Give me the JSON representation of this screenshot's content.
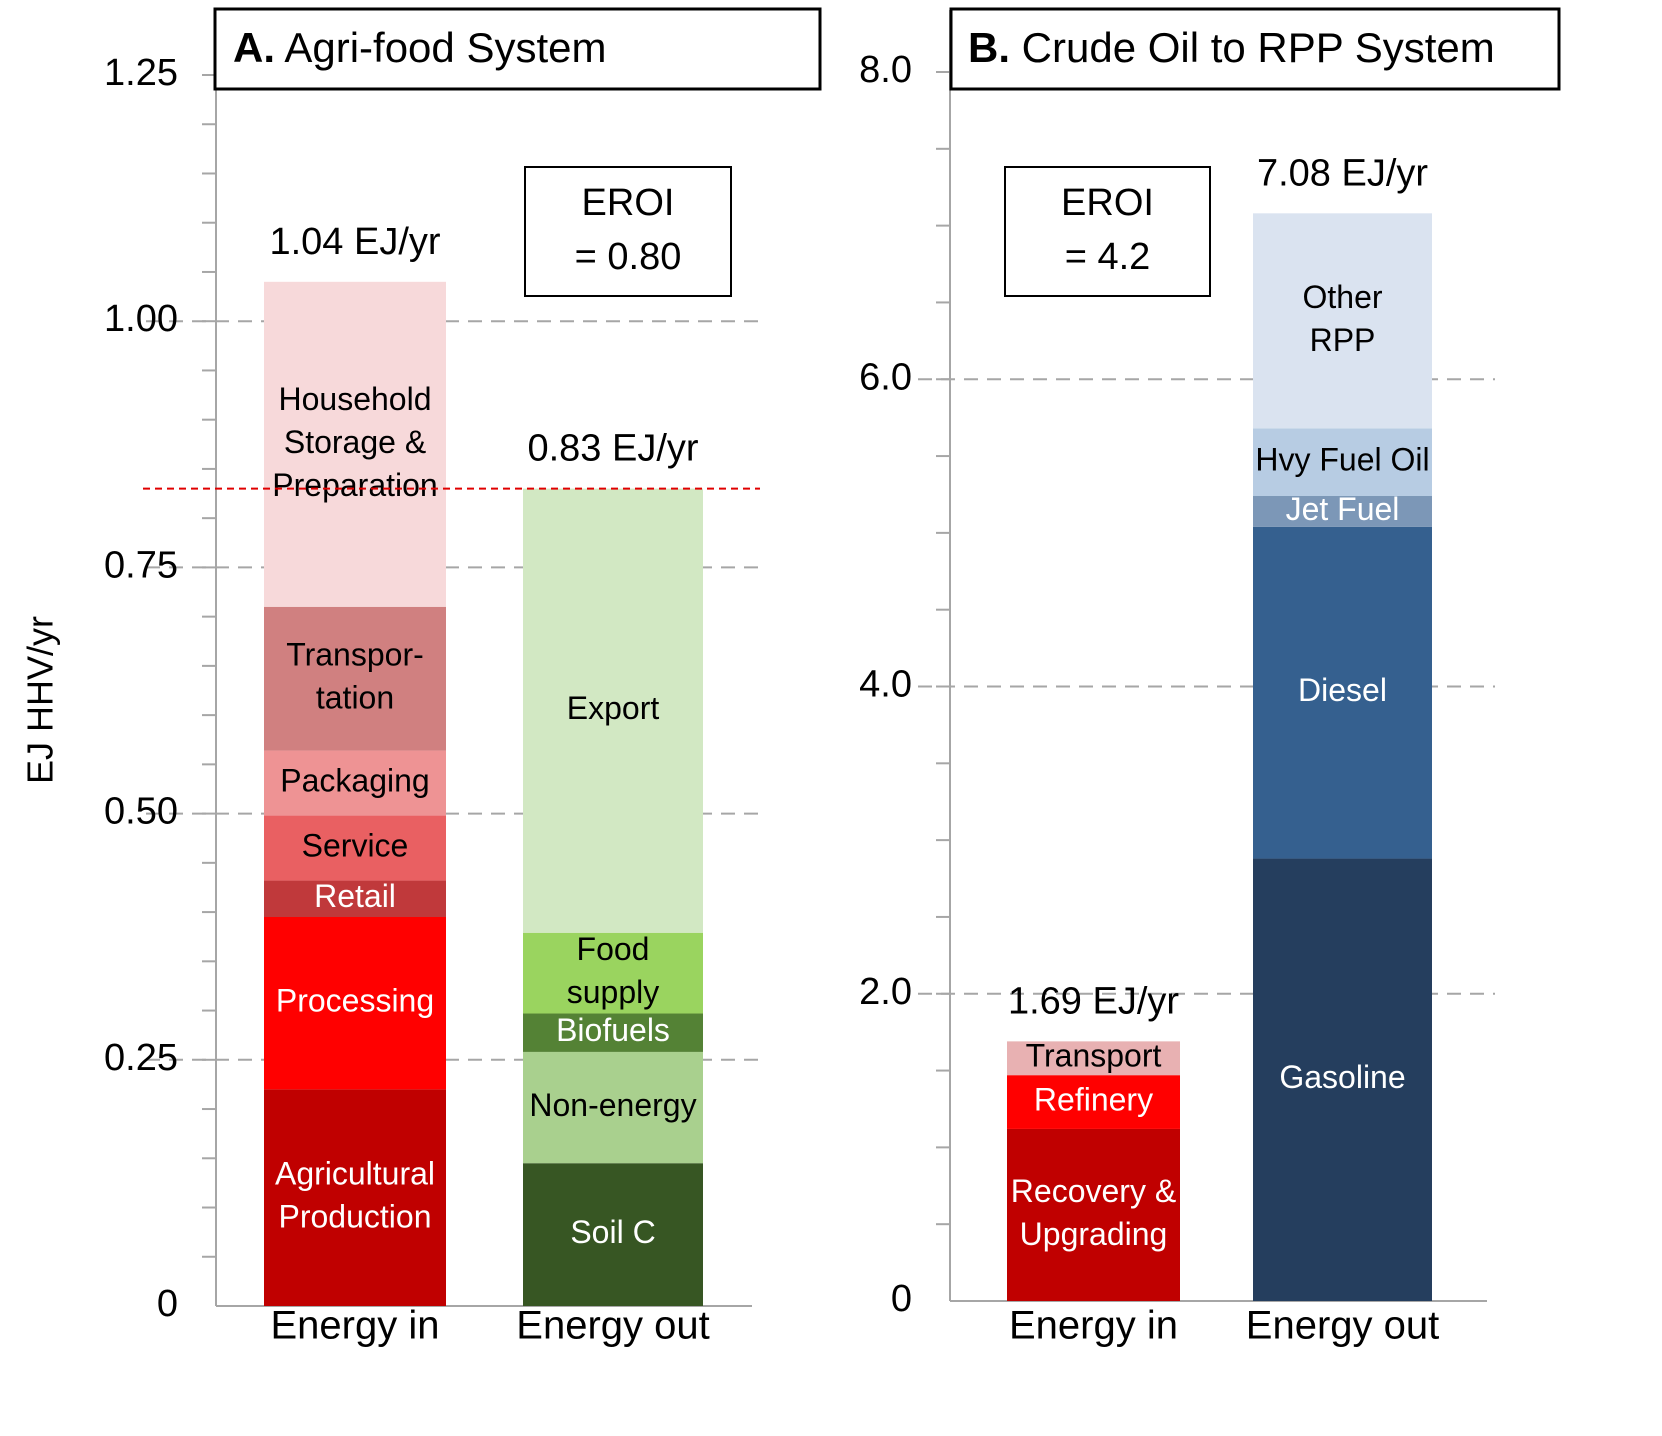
{
  "chart_data": [
    {
      "type": "bar",
      "stacked": true,
      "panel_letter": "A.",
      "title": "Agri-food System",
      "ylabel": "EJ HHV/yr",
      "ylim": [
        0,
        1.25
      ],
      "yticks": [
        "0",
        "0.25",
        "0.50",
        "0.75",
        "1.00",
        "1.25"
      ],
      "grid": "dashed horizontal",
      "categories": [
        "Energy in",
        "Energy out"
      ],
      "eroi_lines": [
        "EROI",
        "= 0.80"
      ],
      "reference_line": {
        "value": 0.83,
        "style": "red dashed"
      },
      "bars": [
        {
          "category": "Energy in",
          "total_label": "1.04 EJ/yr",
          "segments": [
            {
              "label": [
                "Agricultural",
                "Production"
              ],
              "value": 0.22,
              "color": "#c00000",
              "text_color": "#ffffff"
            },
            {
              "label": [
                "Processing"
              ],
              "value": 0.175,
              "color": "#ff0000",
              "text_color": "#ffffff"
            },
            {
              "label": [
                "Retail"
              ],
              "value": 0.037,
              "color": "#c0393b",
              "text_color": "#ffffff"
            },
            {
              "label": [
                "Service"
              ],
              "value": 0.066,
              "color": "#e96062",
              "text_color": "#000000"
            },
            {
              "label": [
                "Packaging"
              ],
              "value": 0.066,
              "color": "#ee9394",
              "text_color": "#000000"
            },
            {
              "label": [
                "Transpor-",
                "tation"
              ],
              "value": 0.146,
              "color": "#d08080",
              "text_color": "#000000"
            },
            {
              "label": [
                "Household",
                "Storage &",
                "Preparation"
              ],
              "value": 0.33,
              "color": "#f7d9da",
              "text_color": "#000000"
            }
          ]
        },
        {
          "category": "Energy out",
          "total_label": "0.83 EJ/yr",
          "segments": [
            {
              "label": [
                "Soil C"
              ],
              "value": 0.145,
              "color": "#375623",
              "text_color": "#ffffff"
            },
            {
              "label": [
                "Non-energy"
              ],
              "value": 0.113,
              "color": "#a9d08e",
              "text_color": "#000000"
            },
            {
              "label": [
                "Biofuels"
              ],
              "value": 0.039,
              "color": "#548235",
              "text_color": "#ffffff"
            },
            {
              "label": [
                "Food",
                "supply"
              ],
              "value": 0.082,
              "color": "#9ad45f",
              "text_color": "#000000"
            },
            {
              "label": [
                "Export"
              ],
              "value": 0.451,
              "color": "#d2e8c3",
              "text_color": "#000000"
            }
          ]
        }
      ]
    },
    {
      "type": "bar",
      "stacked": true,
      "panel_letter": "B.",
      "title": "Crude Oil to RPP System",
      "ylim": [
        0,
        8.0
      ],
      "yticks": [
        "0",
        "2.0",
        "4.0",
        "6.0",
        "8.0"
      ],
      "grid": "dashed horizontal",
      "categories": [
        "Energy in",
        "Energy out"
      ],
      "eroi_lines": [
        "EROI",
        "= 4.2"
      ],
      "bars": [
        {
          "category": "Energy in",
          "total_label": "1.69 EJ/yr",
          "segments": [
            {
              "label": [
                "Recovery &",
                "Upgrading"
              ],
              "value": 1.12,
              "color": "#c00000",
              "text_color": "#ffffff"
            },
            {
              "label": [
                "Refinery"
              ],
              "value": 0.35,
              "color": "#ff0000",
              "text_color": "#ffffff"
            },
            {
              "label": [
                "Transport"
              ],
              "value": 0.22,
              "color": "#e8b1b2",
              "text_color": "#000000"
            }
          ]
        },
        {
          "category": "Energy out",
          "total_label": "7.08 EJ/yr",
          "segments": [
            {
              "label": [
                "Gasoline"
              ],
              "value": 2.88,
              "color": "#253e5e",
              "text_color": "#ffffff"
            },
            {
              "label": [
                "Diesel"
              ],
              "value": 2.16,
              "color": "#35608f",
              "text_color": "#ffffff"
            },
            {
              "label": [
                "Jet Fuel"
              ],
              "value": 0.2,
              "color": "#7c97b7",
              "text_color": "#ffffff"
            },
            {
              "label": [
                "Hvy Fuel Oil"
              ],
              "value": 0.44,
              "color": "#b7cce3",
              "text_color": "#000000"
            },
            {
              "label": [
                "Other",
                "RPP"
              ],
              "value": 1.4,
              "color": "#dae3f0",
              "text_color": "#000000"
            }
          ]
        }
      ]
    }
  ]
}
